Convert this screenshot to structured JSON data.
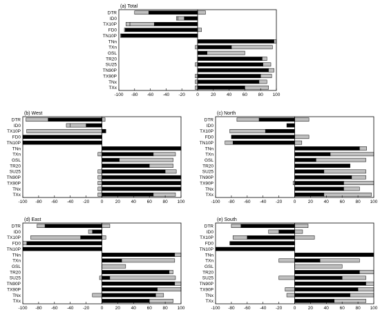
{
  "figure": {
    "panel_titles": [
      "(a) Total",
      "(b) West",
      "(c) North",
      "(d) East",
      "(e) South"
    ],
    "colors": {
      "dark": "#000000",
      "light": "#bfbfbf",
      "frame": "#000000",
      "background": "#ffffff"
    },
    "icons": []
  },
  "chart_data": [
    {
      "type": "bar",
      "title": "(a) Total",
      "orientation": "horizontal",
      "xlim": [
        -100,
        100
      ],
      "x_ticks": [
        "-100",
        "-80",
        "-60",
        "-40",
        "-20",
        "0",
        "20",
        "40",
        "60",
        "80",
        "100"
      ],
      "categories": [
        "DTR",
        "ID0",
        "TX10P",
        "FD0",
        "TN10P",
        "TNn",
        "TXn",
        "GSL",
        "TR20",
        "SU25",
        "TN90P",
        "TX90P",
        "TNx",
        "TXx"
      ],
      "series": [
        {
          "color": "dark",
          "values": [
            -62,
            -17,
            -55,
            -92,
            -97,
            97,
            43,
            12,
            82,
            83,
            90,
            80,
            78,
            60
          ]
        },
        {
          "color": "light",
          "values": [
            10,
            -8,
            -31,
            -1,
            -1,
            3,
            52,
            48,
            6,
            10,
            7,
            14,
            10,
            30
          ]
        },
        {
          "color": "light",
          "values": [
            -18,
            -2,
            -5,
            5,
            0,
            0,
            -3,
            0,
            0,
            -3,
            0,
            -3,
            -3,
            -3
          ]
        }
      ]
    },
    {
      "type": "bar",
      "title": "(b) West",
      "orientation": "horizontal",
      "xlim": [
        -100,
        100
      ],
      "x_ticks": [
        "-100",
        "-80",
        "-60",
        "-40",
        "-20",
        "0",
        "20",
        "40",
        "60",
        "80",
        "100"
      ],
      "categories": [
        "DTR",
        "ID0",
        "TX10P",
        "FD0",
        "TN10P",
        "TNn",
        "TXn",
        "GSL",
        "TR20",
        "SU25",
        "TN90P",
        "TX90P",
        "TNx",
        "TXx"
      ],
      "series": [
        {
          "color": "dark",
          "values": [
            -68,
            -20,
            5,
            -100,
            -100,
            100,
            65,
            22,
            60,
            80,
            100,
            100,
            100,
            65
          ]
        },
        {
          "color": "light",
          "values": [
            4,
            -20,
            -95,
            0,
            0,
            0,
            28,
            68,
            30,
            14,
            0,
            -5,
            -5,
            28
          ]
        },
        {
          "color": "light",
          "values": [
            -28,
            -5,
            0,
            0,
            0,
            0,
            -5,
            0,
            0,
            -5,
            -5,
            0,
            0,
            -5
          ]
        }
      ]
    },
    {
      "type": "bar",
      "title": "(c) North",
      "orientation": "horizontal",
      "xlim": [
        -100,
        100
      ],
      "x_ticks": [
        "-100",
        "-80",
        "-60",
        "-40",
        "-20",
        "0",
        "20",
        "40",
        "60",
        "80",
        "100"
      ],
      "categories": [
        "DTR",
        "ID0",
        "TX10P",
        "FD0",
        "TN10P",
        "TNn",
        "TXn",
        "GSL",
        "TR20",
        "SU25",
        "TN90P",
        "TX90P",
        "TNx",
        "TXx"
      ],
      "series": [
        {
          "color": "dark",
          "values": [
            -45,
            -10,
            -37,
            -80,
            -78,
            82,
            45,
            27,
            70,
            37,
            72,
            62,
            62,
            37
          ]
        },
        {
          "color": "light",
          "values": [
            18,
            0,
            -45,
            18,
            9,
            9,
            55,
            63,
            0,
            53,
            18,
            38,
            20,
            60
          ]
        },
        {
          "color": "light",
          "values": [
            -28,
            0,
            0,
            0,
            -10,
            0,
            0,
            0,
            0,
            0,
            0,
            -2,
            0,
            0
          ]
        }
      ]
    },
    {
      "type": "bar",
      "title": "(d) East",
      "orientation": "horizontal",
      "xlim": [
        -100,
        100
      ],
      "x_ticks": [
        "-100",
        "-80",
        "-60",
        "-40",
        "-20",
        "0",
        "20",
        "40",
        "60",
        "80",
        "100"
      ],
      "categories": [
        "DTR",
        "ID0",
        "TX10P",
        "FD0",
        "TN10P",
        "TNn",
        "TXn",
        "GSL",
        "TR20",
        "SU25",
        "TN90P",
        "TX90P",
        "TNx",
        "TXx"
      ],
      "series": [
        {
          "color": "dark",
          "values": [
            -72,
            -12,
            -27,
            -95,
            -100,
            92,
            25,
            0,
            85,
            10,
            92,
            70,
            68,
            60
          ]
        },
        {
          "color": "light",
          "values": [
            10,
            -5,
            -63,
            0,
            0,
            8,
            67,
            30,
            5,
            83,
            8,
            30,
            10,
            30
          ]
        },
        {
          "color": "light",
          "values": [
            -10,
            0,
            5,
            -5,
            0,
            0,
            0,
            0,
            0,
            -3,
            0,
            0,
            -12,
            0
          ]
        }
      ]
    },
    {
      "type": "bar",
      "title": "(e) South",
      "orientation": "horizontal",
      "xlim": [
        -100,
        100
      ],
      "x_ticks": [
        "-100",
        "-80",
        "-60",
        "-40",
        "-20",
        "0",
        "20",
        "40",
        "60",
        "80",
        "100"
      ],
      "categories": [
        "DTR",
        "ID0",
        "TX10P",
        "FD0",
        "TN10P",
        "TNn",
        "TXn",
        "GSL",
        "TR20",
        "SU25",
        "TN90P",
        "TX90P",
        "TNx",
        "TXx"
      ],
      "series": [
        {
          "color": "dark",
          "values": [
            -68,
            -20,
            -60,
            -82,
            -100,
            100,
            32,
            0,
            82,
            60,
            90,
            80,
            70,
            50
          ]
        },
        {
          "color": "light",
          "values": [
            17,
            -13,
            -18,
            0,
            0,
            0,
            50,
            60,
            18,
            30,
            10,
            20,
            30,
            40
          ]
        },
        {
          "color": "light",
          "values": [
            -12,
            10,
            25,
            0,
            0,
            0,
            -20,
            0,
            0,
            -20,
            0,
            -12,
            -10,
            0
          ]
        }
      ]
    }
  ]
}
